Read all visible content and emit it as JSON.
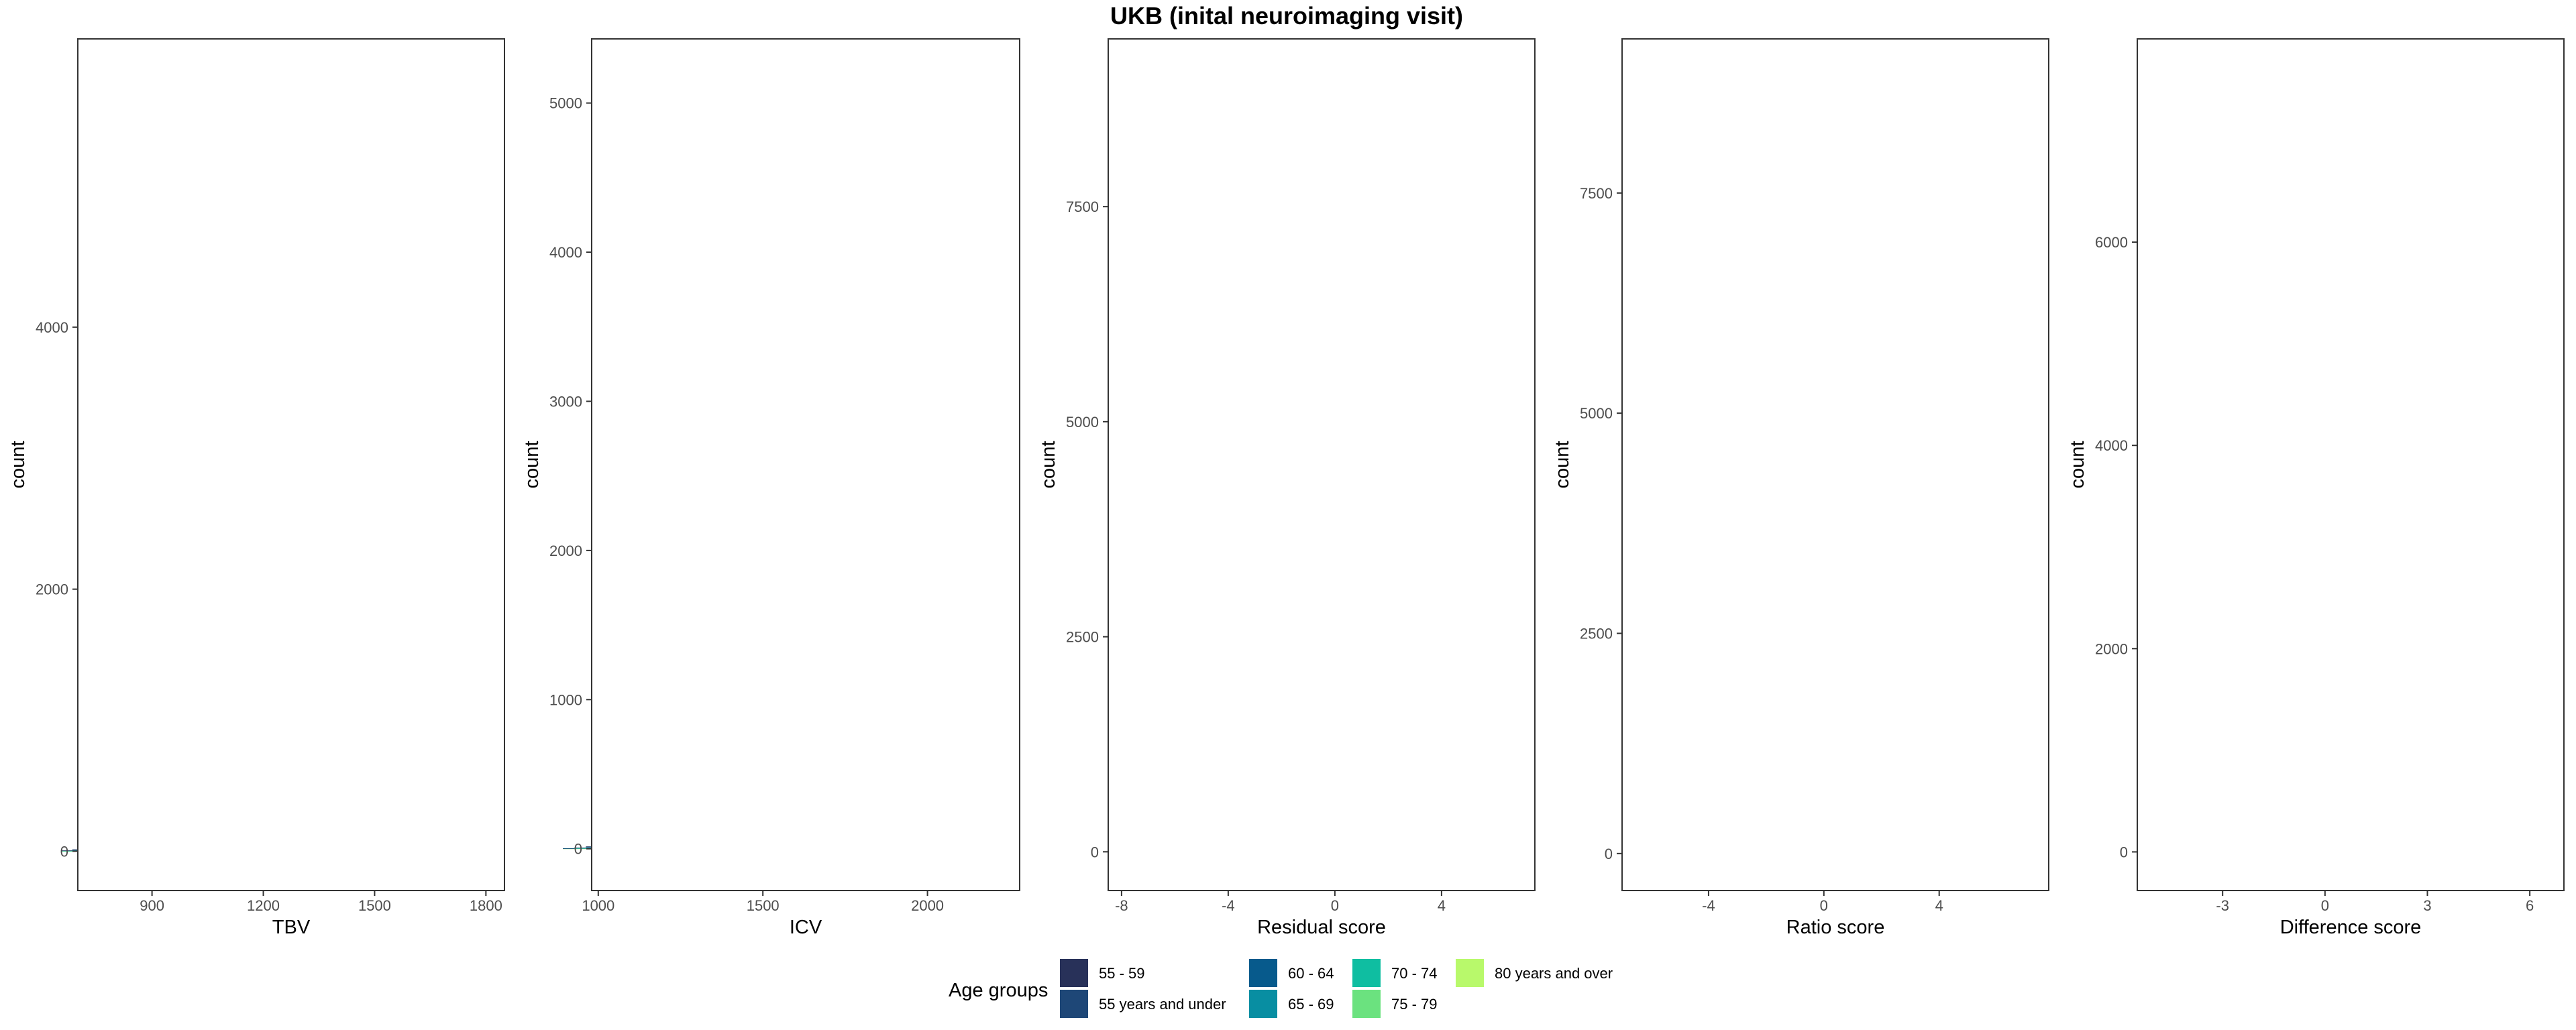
{
  "title": "UKB (inital neuroimaging visit)",
  "legend": {
    "title": "Age groups",
    "entries": [
      {
        "label": "55 - 59",
        "color": "#283159"
      },
      {
        "label": "55 years and under",
        "color": "#1e4777"
      },
      {
        "label": "60 - 64",
        "color": "#075a8c"
      },
      {
        "label": "65 - 69",
        "color": "#088ea2"
      },
      {
        "label": "70 - 74",
        "color": "#0fbea1"
      },
      {
        "label": "75 - 79",
        "color": "#6be27f"
      },
      {
        "label": "80 years and over",
        "color": "#b8f96b"
      }
    ],
    "placement": "bottom"
  },
  "chart_data": [
    {
      "type": "bar",
      "subtype": "stacked histogram",
      "xlabel": "TBV",
      "ylabel": "count",
      "xlim": [
        700,
        1850
      ],
      "ylim": [
        -300,
        6200
      ],
      "xticks": [
        900,
        1200,
        1500,
        1800
      ],
      "yticks": [
        0,
        2000,
        4000
      ],
      "center": 1150,
      "sd": 130,
      "bin_width": 30,
      "total": 5600,
      "grid": true
    },
    {
      "type": "bar",
      "subtype": "stacked histogram",
      "xlabel": "ICV",
      "ylabel": "count",
      "xlim": [
        980,
        2280
      ],
      "ylim": [
        -280,
        5430
      ],
      "xticks": [
        1000,
        1500,
        2000
      ],
      "yticks": [
        0,
        1000,
        2000,
        3000,
        4000,
        5000
      ],
      "center": 1540,
      "sd": 165,
      "bin_width": 35,
      "total": 5170,
      "grid": true
    },
    {
      "type": "bar",
      "subtype": "stacked histogram",
      "xlabel": "Residual score",
      "ylabel": "count",
      "xlim": [
        -8.5,
        7.5
      ],
      "ylim": [
        -450,
        9450
      ],
      "xticks": [
        -8,
        -4,
        0,
        4
      ],
      "yticks": [
        0,
        2500,
        5000,
        7500
      ],
      "center": 0,
      "sd": 1.0,
      "bin_width": 0.42,
      "total": 9000,
      "grid": true
    },
    {
      "type": "bar",
      "subtype": "stacked histogram",
      "xlabel": "Ratio score",
      "ylabel": "count",
      "xlim": [
        -7.0,
        7.8
      ],
      "ylim": [
        -420,
        9250
      ],
      "xticks": [
        -4,
        0,
        4
      ],
      "yticks": [
        0,
        2500,
        5000,
        7500
      ],
      "center": 0,
      "sd": 0.95,
      "bin_width": 0.42,
      "total": 8750,
      "grid": true
    },
    {
      "type": "bar",
      "subtype": "stacked histogram",
      "xlabel": "Difference score",
      "ylabel": "count",
      "xlim": [
        -5.5,
        7.0
      ],
      "ylim": [
        -380,
        8000
      ],
      "xticks": [
        -3,
        0,
        3,
        6
      ],
      "yticks": [
        0,
        2000,
        4000,
        6000
      ],
      "center": 0,
      "sd": 0.75,
      "bin_width": 0.32,
      "total": 7600,
      "grid": true
    }
  ]
}
